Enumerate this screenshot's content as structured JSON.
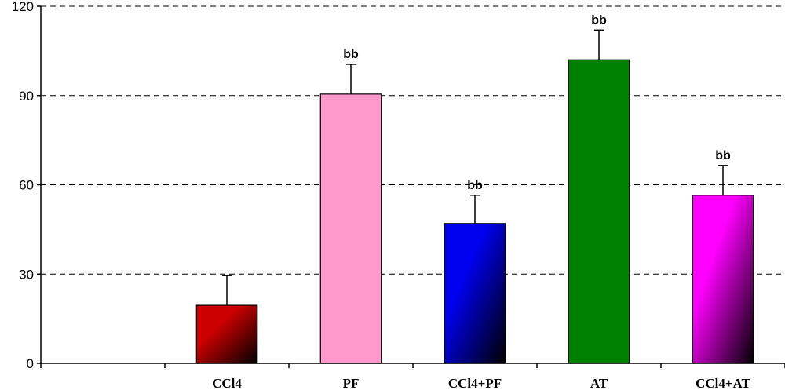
{
  "chart_data": {
    "type": "bar",
    "title": "",
    "xlabel": "",
    "ylabel": "",
    "ylim": [
      0,
      120
    ],
    "yticks": [
      0,
      30,
      60,
      90,
      120
    ],
    "grid": true,
    "categories": [
      "",
      "CCl4",
      "PF",
      "CCl4+PF",
      "AT",
      "CCl4+AT"
    ],
    "values": [
      null,
      19.5,
      90.5,
      47,
      102,
      56.5
    ],
    "errors": [
      null,
      10,
      10,
      9.5,
      10,
      10
    ],
    "annotations": [
      "",
      "",
      "bb",
      "bb",
      "bb",
      "bb"
    ],
    "colors": [
      "",
      "#cc0000",
      "#ff99cc",
      "#0000ee",
      "#008000",
      "#ff00ff"
    ]
  }
}
